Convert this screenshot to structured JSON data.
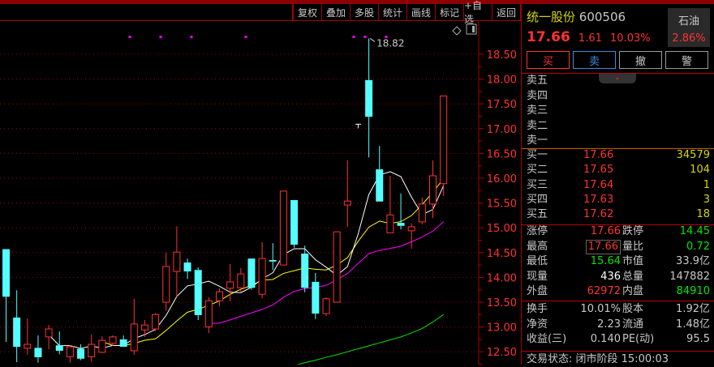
{
  "toolbar": {
    "buttons": [
      "复权",
      "叠加",
      "多股",
      "统计",
      "画线",
      "标记",
      "+自选",
      "返回"
    ]
  },
  "stock": {
    "name": "统一股份",
    "code": "600506",
    "price": "17.66",
    "change": "1.61",
    "change_pct": "10.03%",
    "sector": "石油",
    "sector_pct": "2.86%"
  },
  "actions": {
    "buy": "买",
    "sell": "卖",
    "cancel": "撤",
    "alert": "警"
  },
  "sell_levels": [
    {
      "label": "卖五"
    },
    {
      "label": "卖四"
    },
    {
      "label": "卖三"
    },
    {
      "label": "卖二"
    },
    {
      "label": "卖一"
    }
  ],
  "buy_levels": [
    {
      "label": "买一",
      "price": "17.66",
      "vol": "34579"
    },
    {
      "label": "买二",
      "price": "17.65",
      "vol": "104"
    },
    {
      "label": "买三",
      "price": "17.64",
      "vol": "1"
    },
    {
      "label": "买四",
      "price": "17.63",
      "vol": "3"
    },
    {
      "label": "买五",
      "price": "17.62",
      "vol": "18"
    }
  ],
  "stats": [
    {
      "k1": "涨停",
      "v1": "17.66",
      "k2": "跌停",
      "v2": "14.45"
    },
    {
      "k1": "最高",
      "v1": "17.66",
      "k2": "量比",
      "v2": "0.72"
    },
    {
      "k1": "最低",
      "v1": "15.64",
      "k2": "市值",
      "v2": "33.9亿"
    },
    {
      "k1": "现量",
      "v1": "436",
      "k2": "总量",
      "v2": "147882"
    },
    {
      "k1": "外盘",
      "v1": "62972",
      "k2": "内盘",
      "v2": "84910"
    }
  ],
  "fundamentals": [
    {
      "k1": "换手",
      "v1": "10.01%",
      "k2": "股本",
      "v2": "1.92亿"
    },
    {
      "k1": "净资",
      "v1": "2.23",
      "k2": "流通",
      "v2": "1.48亿"
    },
    {
      "k1": "收益(三)",
      "v1": "0.140",
      "k2": "PE(动)",
      "v2": "95.5"
    }
  ],
  "status": "交易状态: 闭市阶段 15:00:03",
  "colors": {
    "up": "#ff3232",
    "down": "#54ffff",
    "ma5": "#ffffff",
    "ma10": "#ffff00",
    "ma20": "#ff00ff",
    "ma60": "#00e600",
    "frame": "#aa0000"
  },
  "chart_data": {
    "type": "candlestick",
    "y_ticks": [
      "18.50",
      "18.00",
      "17.50",
      "17.00",
      "16.50",
      "16.00",
      "15.50",
      "15.00",
      "14.50",
      "14.00",
      "13.50",
      "13.00",
      "12.50"
    ],
    "ylim": [
      12.3,
      18.9
    ],
    "high_label": "18.82",
    "candles": [
      [
        14.57,
        13.61,
        14.57,
        12.7
      ],
      [
        13.19,
        12.6,
        13.74,
        12.29
      ],
      [
        12.57,
        12.65,
        13.17,
        12.44
      ],
      [
        12.58,
        12.39,
        12.83,
        12.28
      ],
      [
        12.8,
        12.96,
        13.04,
        12.55
      ],
      [
        12.63,
        12.52,
        12.91,
        12.45
      ],
      [
        12.4,
        12.6,
        12.63,
        12.28
      ],
      [
        12.56,
        12.36,
        12.65,
        12.33
      ],
      [
        12.4,
        12.65,
        12.85,
        12.3
      ],
      [
        12.49,
        12.73,
        12.81,
        12.47
      ],
      [
        12.67,
        12.8,
        12.83,
        12.62
      ],
      [
        12.75,
        12.6,
        12.83,
        12.6
      ],
      [
        12.52,
        13.06,
        13.57,
        12.44
      ],
      [
        12.94,
        13.04,
        13.14,
        12.8
      ],
      [
        12.96,
        13.25,
        13.28,
        12.92
      ],
      [
        13.5,
        14.22,
        14.5,
        13.33
      ],
      [
        14.12,
        14.51,
        15.03,
        13.61
      ],
      [
        14.3,
        14.12,
        14.38,
        13.97
      ],
      [
        14.15,
        13.24,
        14.2,
        13.14
      ],
      [
        13.0,
        13.53,
        13.6,
        12.88
      ],
      [
        13.53,
        13.71,
        13.78,
        13.42
      ],
      [
        13.78,
        13.91,
        14.27,
        13.52
      ],
      [
        13.79,
        14.07,
        14.19,
        13.71
      ],
      [
        14.38,
        13.79,
        14.38,
        13.75
      ],
      [
        13.66,
        14.38,
        14.71,
        13.58
      ],
      [
        14.35,
        14.32,
        14.69,
        14.15
      ],
      [
        14.25,
        15.74,
        15.74,
        14.25
      ],
      [
        15.56,
        14.66,
        15.56,
        14.6
      ],
      [
        14.48,
        13.79,
        14.64,
        13.7
      ],
      [
        13.91,
        13.27,
        14.09,
        13.16
      ],
      [
        13.27,
        13.57,
        13.6,
        13.22
      ],
      [
        13.5,
        14.92,
        14.92,
        13.5
      ],
      [
        15.46,
        15.54,
        16.36,
        15.02
      ],
      [
        17.09,
        17.09,
        17.09,
        17.09
      ],
      [
        17.98,
        17.24,
        18.82,
        16.42
      ],
      [
        16.18,
        15.53,
        16.65,
        15.53
      ],
      [
        14.9,
        15.26,
        16.05,
        14.9
      ],
      [
        15.1,
        15.04,
        15.69,
        14.97
      ],
      [
        14.94,
        15.02,
        15.09,
        14.58
      ],
      [
        15.12,
        15.48,
        15.61,
        15.07
      ],
      [
        15.48,
        16.05,
        16.36,
        15.2
      ],
      [
        15.89,
        17.66,
        17.66,
        15.64
      ]
    ],
    "candle_fields": [
      "open",
      "close",
      "high",
      "low"
    ],
    "ma60_tail": [
      12.22,
      12.28,
      12.33,
      12.39,
      12.44,
      12.5,
      12.56,
      12.62,
      12.68,
      12.74,
      12.8,
      12.88,
      12.97,
      13.1,
      13.25
    ]
  }
}
